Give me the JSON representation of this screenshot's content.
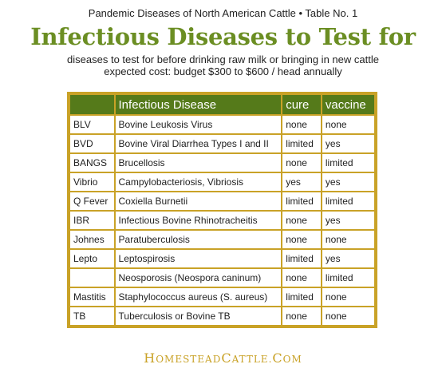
{
  "header": {
    "caption": "Pandemic Diseases of North American Cattle  • Table No. 1",
    "title": "Infectious Diseases to Test for",
    "subtitle_line1": "diseases to test for before drinking raw milk or bringing in new cattle",
    "subtitle_line2": "expected cost: budget $300 to $600 / head annually"
  },
  "table": {
    "columns": [
      "",
      "Infectious Disease",
      "cure",
      "vaccine"
    ],
    "rows": [
      [
        "BLV",
        "Bovine Leukosis Virus",
        "none",
        "none"
      ],
      [
        "BVD",
        "Bovine Viral Diarrhea Types I and II",
        "limited",
        "yes"
      ],
      [
        "BANGS",
        "Brucellosis",
        "none",
        "limited"
      ],
      [
        "Vibrio",
        "Campylobacteriosis, Vibriosis",
        "yes",
        "yes"
      ],
      [
        "Q Fever",
        "Coxiella Burnetii",
        "limited",
        "limited"
      ],
      [
        "IBR",
        "Infectious Bovine Rhinotracheitis",
        "none",
        "yes"
      ],
      [
        "Johnes",
        "Paratuberculosis",
        "none",
        "none"
      ],
      [
        "Lepto",
        "Leptospirosis",
        "limited",
        "yes"
      ],
      [
        "",
        "Neosporosis (Neospora caninum)",
        "none",
        "limited"
      ],
      [
        "Mastitis",
        "Staphylococcus aureus (S. aureus)",
        "limited",
        "none"
      ],
      [
        "TB",
        "Tuberculosis or Bovine TB",
        "none",
        "none"
      ]
    ]
  },
  "footer": {
    "brand_parts": [
      {
        "text": "H",
        "size": "big"
      },
      {
        "text": "OMESTEAD",
        "size": "small"
      },
      {
        "text": "C",
        "size": "big"
      },
      {
        "text": "ATTLE",
        "size": "small"
      },
      {
        "text": ".",
        "size": "small"
      },
      {
        "text": "C",
        "size": "big"
      },
      {
        "text": "OM",
        "size": "small"
      }
    ]
  },
  "colors": {
    "title_green": "#6b8e23",
    "header_green": "#557a1a",
    "border_gold": "#c9a227"
  }
}
